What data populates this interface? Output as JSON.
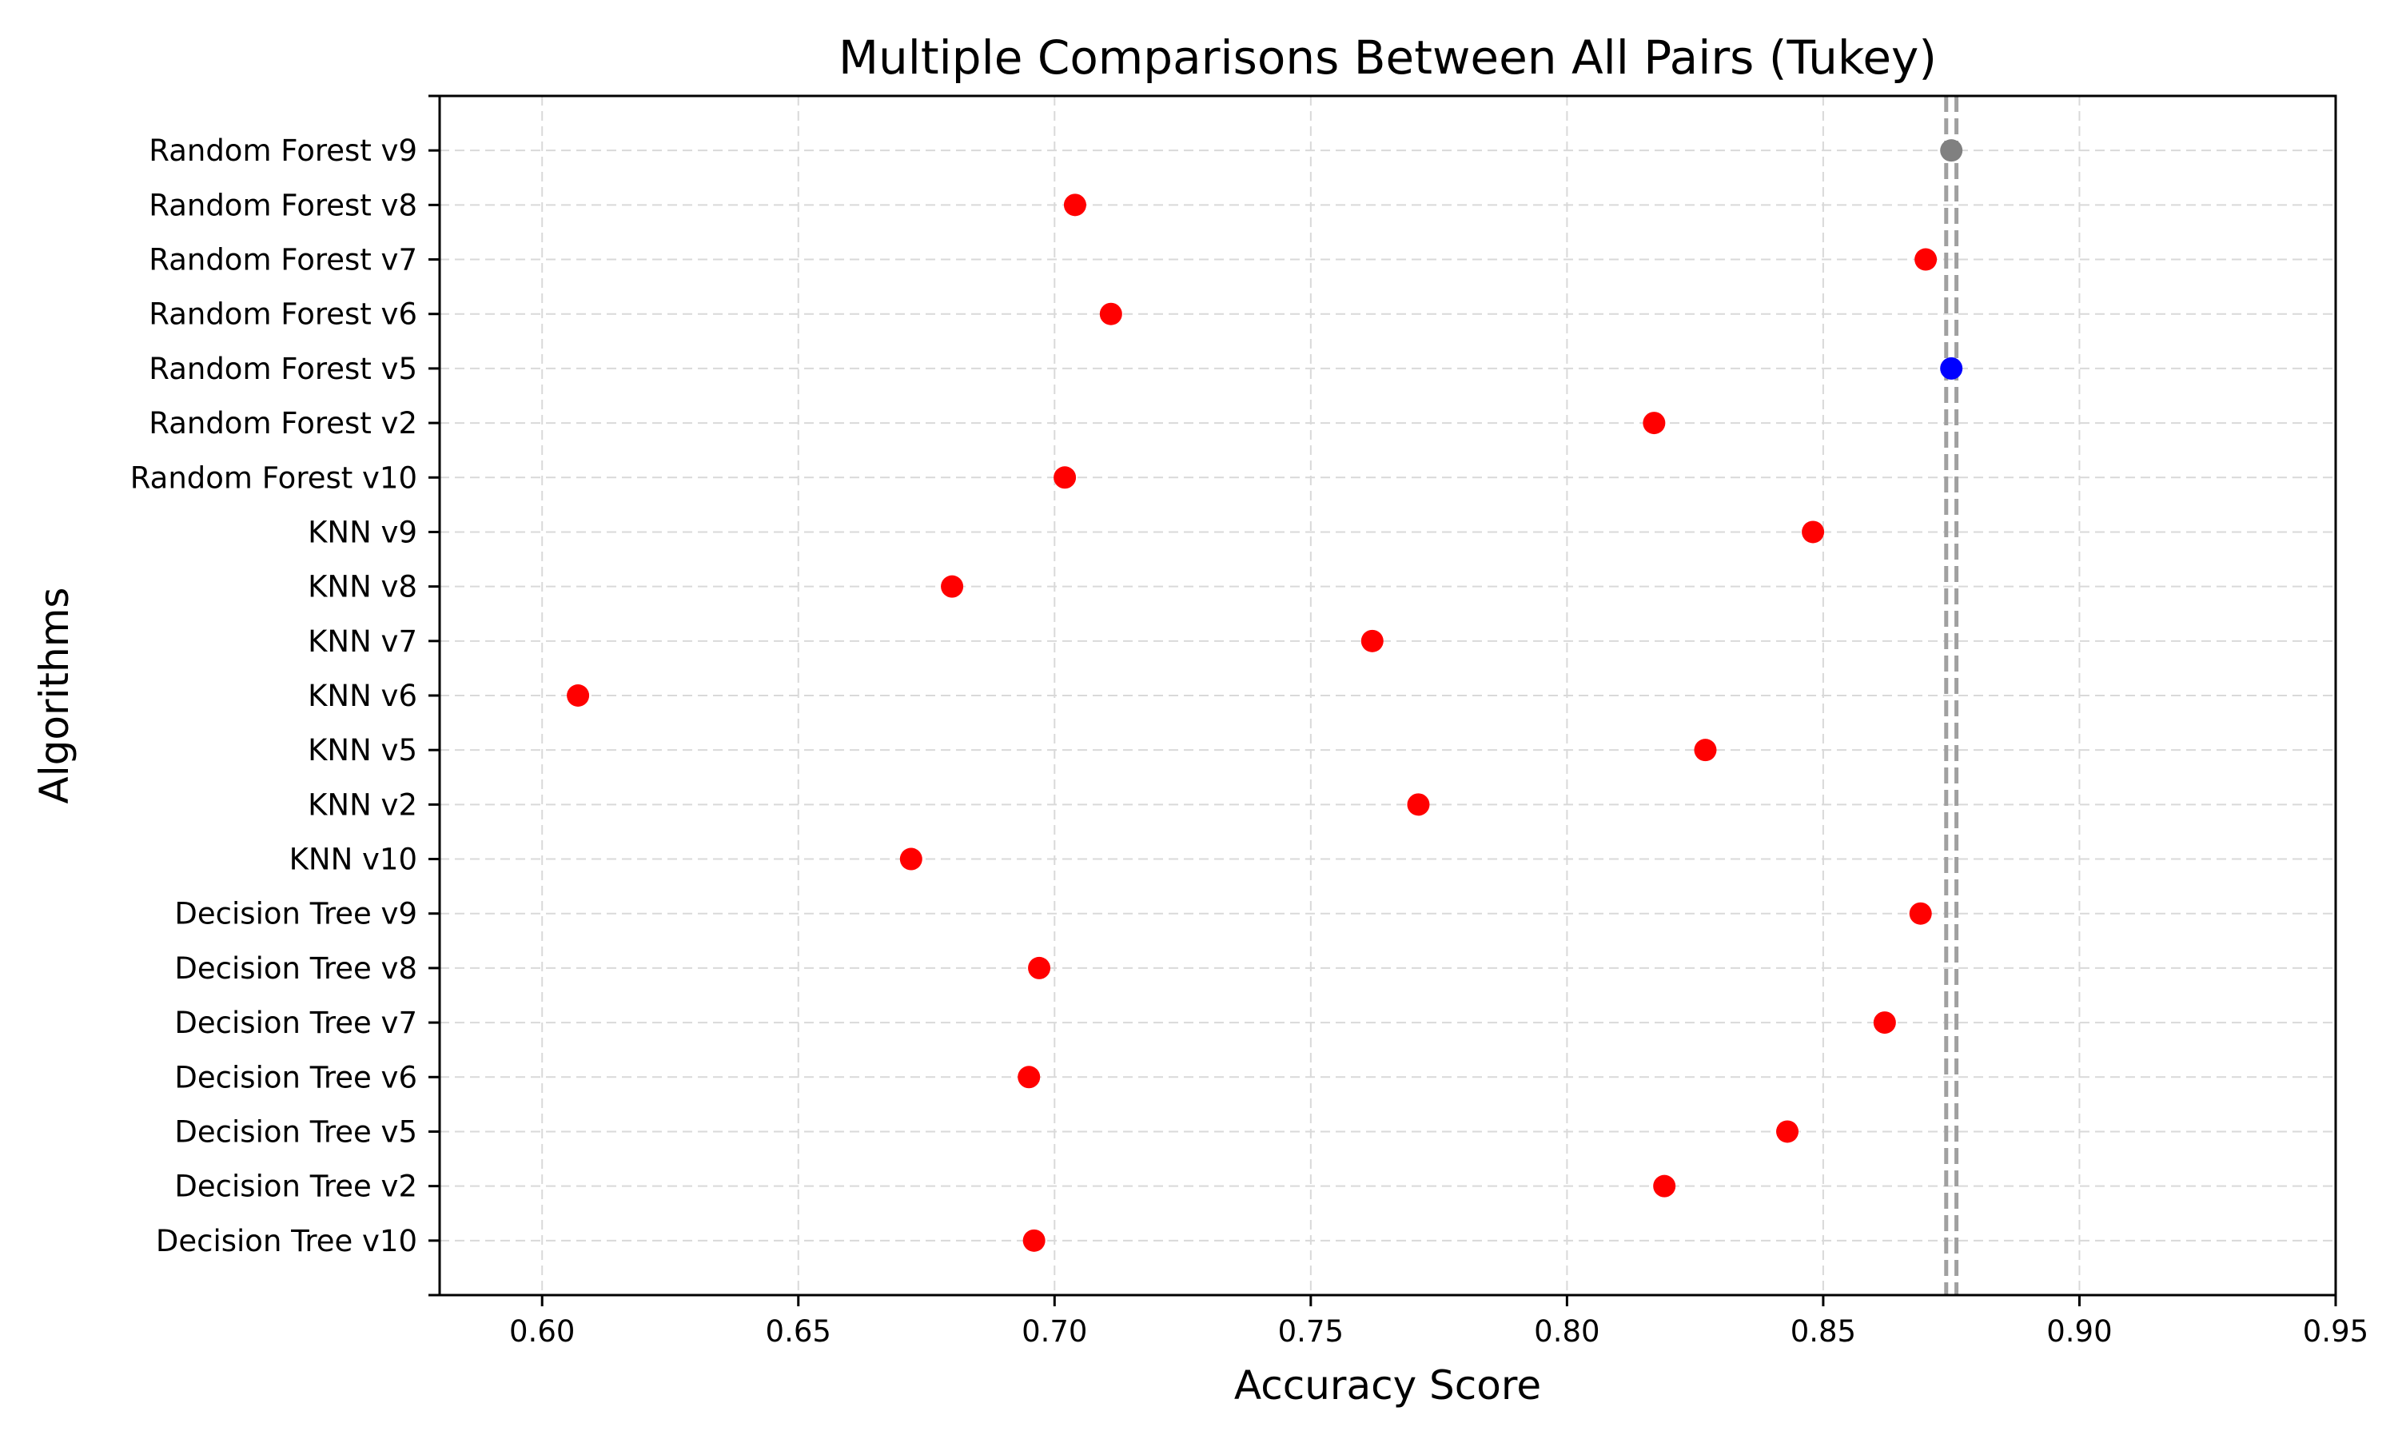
{
  "chart_data": {
    "type": "scatter",
    "title": "Multiple Comparisons Between All Pairs (Tukey)",
    "xlabel": "Accuracy Score",
    "ylabel": "Algorithms",
    "xlim": [
      0.58,
      0.95
    ],
    "xticks": [
      0.6,
      0.65,
      0.7,
      0.75,
      0.8,
      0.85,
      0.9,
      0.95
    ],
    "xtick_labels": [
      "0.60",
      "0.65",
      "0.70",
      "0.75",
      "0.80",
      "0.85",
      "0.90",
      "0.95"
    ],
    "grid": true,
    "categories": [
      "Decision Tree v10",
      "Decision Tree v2",
      "Decision Tree v5",
      "Decision Tree v6",
      "Decision Tree v7",
      "Decision Tree v8",
      "Decision Tree v9",
      "KNN v10",
      "KNN v2",
      "KNN v5",
      "KNN v6",
      "KNN v7",
      "KNN v8",
      "KNN v9",
      "Random Forest v10",
      "Random Forest v2",
      "Random Forest v5",
      "Random Forest v6",
      "Random Forest v7",
      "Random Forest v8",
      "Random Forest v9"
    ],
    "values": [
      0.696,
      0.819,
      0.843,
      0.695,
      0.862,
      0.697,
      0.869,
      0.672,
      0.771,
      0.827,
      0.607,
      0.762,
      0.68,
      0.848,
      0.702,
      0.817,
      0.875,
      0.711,
      0.87,
      0.704,
      0.875
    ],
    "point_colors": [
      "#ff0000",
      "#ff0000",
      "#ff0000",
      "#ff0000",
      "#ff0000",
      "#ff0000",
      "#ff0000",
      "#ff0000",
      "#ff0000",
      "#ff0000",
      "#ff0000",
      "#ff0000",
      "#ff0000",
      "#ff0000",
      "#ff0000",
      "#ff0000",
      "#0000ff",
      "#ff0000",
      "#ff0000",
      "#ff0000",
      "#808080"
    ],
    "reference_lines": [
      0.874,
      0.876
    ],
    "reference_line_color": "#a0a0a0"
  }
}
